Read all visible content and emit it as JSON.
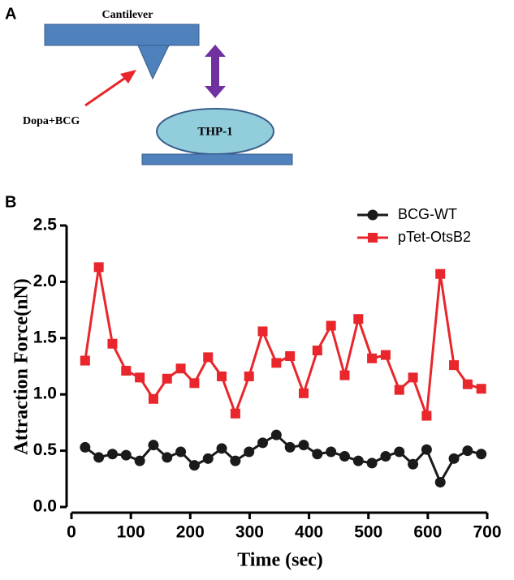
{
  "panel_a": {
    "label": "A",
    "cantilever": "Cantilever",
    "probe": "Dopa+BCG",
    "cell": "THP-1"
  },
  "panel_b_label": "B",
  "chart_data": {
    "type": "line",
    "xlabel": "Time (sec)",
    "ylabel": "Attraction Force(nN)",
    "x": [
      23,
      46,
      69,
      92,
      115,
      138,
      161,
      184,
      207,
      230,
      253,
      276,
      299,
      322,
      345,
      368,
      391,
      414,
      437,
      460,
      483,
      506,
      529,
      552,
      575,
      598,
      621,
      644,
      667,
      690
    ],
    "series": [
      {
        "name": "BCG-WT",
        "color": "#1a1a1a",
        "marker": "circle",
        "values": [
          0.53,
          0.44,
          0.47,
          0.46,
          0.41,
          0.55,
          0.44,
          0.49,
          0.37,
          0.43,
          0.52,
          0.41,
          0.49,
          0.57,
          0.64,
          0.53,
          0.55,
          0.47,
          0.49,
          0.45,
          0.41,
          0.39,
          0.45,
          0.49,
          0.38,
          0.51,
          0.22,
          0.43,
          0.5,
          0.47
        ]
      },
      {
        "name": "pTet-OtsB2",
        "color": "#e8262b",
        "marker": "square",
        "values": [
          1.3,
          2.13,
          1.45,
          1.21,
          1.15,
          0.96,
          1.14,
          1.23,
          1.1,
          1.33,
          1.16,
          0.83,
          1.16,
          1.56,
          1.28,
          1.34,
          1.01,
          1.39,
          1.61,
          1.17,
          1.67,
          1.32,
          1.35,
          1.04,
          1.15,
          0.81,
          2.07,
          1.26,
          1.09,
          1.05
        ]
      }
    ],
    "xlim": [
      0,
      700
    ],
    "xticks": [
      0,
      100,
      200,
      300,
      400,
      500,
      600,
      700
    ],
    "ylim": [
      0,
      2.5
    ],
    "yticks": [
      {
        "value": 0,
        "label": "0.0"
      },
      0.5,
      {
        "value": 1,
        "label": "1.0"
      },
      1.5,
      {
        "value": 2,
        "label": "2.0"
      },
      2.5
    ],
    "legend": "top-right",
    "grid": false
  }
}
